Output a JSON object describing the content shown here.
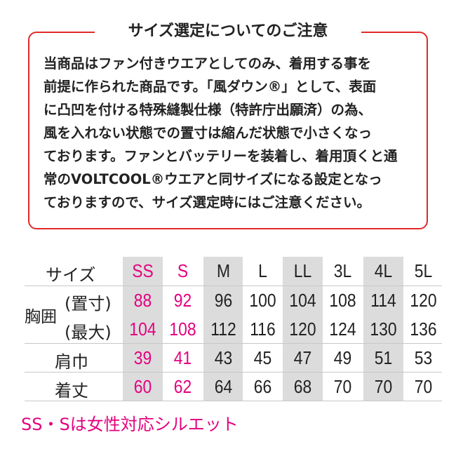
{
  "notice": {
    "title": "サイズ選定についてのご注意",
    "lines": [
      "当商品はファン付きウエアとしてのみ、着用する事を",
      "前提に作られた商品です。「風ダウン®」として、表面",
      "に凸凹を付ける特殊縫製仕様（特許庁出願済）の為、",
      "風を入れない状態での置寸は縮んだ状態で小さくなっ",
      "ております。ファンとバッテリーを装着し、着用頂くと通",
      "常のVOLTCOOL®ウエアと同サイズになる設定となっ",
      "ておりますので、サイズ選定時にはご注意ください。"
    ]
  },
  "table": {
    "size_label": "サイズ",
    "sizes": [
      "SS",
      "S",
      "M",
      "L",
      "LL",
      "3L",
      "4L",
      "5L"
    ],
    "chest_label": "胸囲",
    "chest_flat_label": "(置寸)",
    "chest_max_label": "(最大)",
    "shoulder_label": "肩巾",
    "length_label": "着丈",
    "chest_flat": [
      "88",
      "92",
      "96",
      "100",
      "104",
      "108",
      "114",
      "120"
    ],
    "chest_max": [
      "104",
      "108",
      "112",
      "116",
      "120",
      "124",
      "130",
      "136"
    ],
    "shoulder": [
      "39",
      "41",
      "43",
      "45",
      "47",
      "49",
      "51",
      "53"
    ],
    "length": [
      "60",
      "62",
      "64",
      "66",
      "68",
      "70",
      "70",
      "70"
    ]
  },
  "footnote": "SS・Sは女性対応シルエット",
  "colors": {
    "accent_pink": "#e4007f",
    "border_red": "#e02a2a",
    "band_gray": "#dcdcdc"
  }
}
